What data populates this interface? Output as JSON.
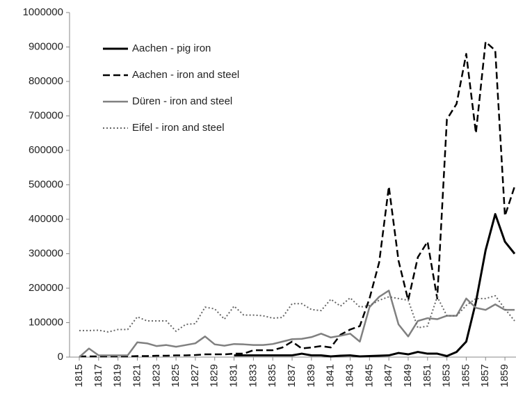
{
  "chart_data": {
    "type": "line",
    "x": [
      1815,
      1816,
      1817,
      1818,
      1819,
      1820,
      1821,
      1822,
      1823,
      1824,
      1825,
      1826,
      1827,
      1828,
      1829,
      1830,
      1831,
      1832,
      1833,
      1834,
      1835,
      1836,
      1837,
      1838,
      1839,
      1840,
      1841,
      1842,
      1843,
      1844,
      1845,
      1846,
      1847,
      1848,
      1849,
      1850,
      1851,
      1852,
      1853,
      1854,
      1855,
      1856,
      1857,
      1858,
      1859,
      1860
    ],
    "xlim": [
      1815,
      1860
    ],
    "xticks": [
      1815,
      1817,
      1819,
      1821,
      1823,
      1825,
      1827,
      1829,
      1831,
      1833,
      1835,
      1837,
      1839,
      1841,
      1843,
      1845,
      1847,
      1849,
      1851,
      1853,
      1855,
      1857,
      1859
    ],
    "ylim": [
      0,
      1000000
    ],
    "yticks": [
      0,
      100000,
      200000,
      300000,
      400000,
      500000,
      600000,
      700000,
      800000,
      900000,
      1000000
    ],
    "legend": "upper left",
    "series": [
      {
        "name": "Aachen - pig iron",
        "color": "#000000",
        "line_style": "solid",
        "width": 3,
        "values": [
          null,
          null,
          null,
          null,
          null,
          null,
          null,
          null,
          null,
          null,
          null,
          null,
          null,
          null,
          null,
          null,
          5000,
          5000,
          5000,
          5000,
          5000,
          5000,
          5000,
          10000,
          5000,
          5000,
          2000,
          4000,
          5000,
          2000,
          3000,
          4000,
          5000,
          12000,
          8000,
          15000,
          10000,
          10000,
          3000,
          15000,
          45000,
          160000,
          310000,
          415000,
          335000,
          300000
        ]
      },
      {
        "name": "Aachen - iron and steel",
        "color": "#000000",
        "line_style": "dashed",
        "width": 2.5,
        "values": [
          2000,
          2000,
          2000,
          2000,
          2000,
          2000,
          3000,
          3000,
          4000,
          4000,
          5000,
          5000,
          6000,
          8000,
          8000,
          8000,
          10000,
          10000,
          20000,
          20000,
          20000,
          28000,
          45000,
          25000,
          28000,
          32000,
          28000,
          65000,
          80000,
          90000,
          170000,
          275000,
          495000,
          280000,
          165000,
          290000,
          335000,
          170000,
          690000,
          735000,
          880000,
          650000,
          915000,
          890000,
          410000,
          495000
        ]
      },
      {
        "name": "Düren - iron and steel",
        "color": "#808080",
        "line_style": "solid",
        "width": 2.5,
        "values": [
          0,
          25000,
          5000,
          5000,
          5000,
          5000,
          43000,
          40000,
          32000,
          35000,
          30000,
          35000,
          40000,
          60000,
          37000,
          33000,
          38000,
          37000,
          35000,
          35000,
          38000,
          45000,
          52000,
          53000,
          58000,
          68000,
          57000,
          62000,
          68000,
          45000,
          145000,
          175000,
          193000,
          95000,
          60000,
          105000,
          113000,
          110000,
          120000,
          120000,
          170000,
          143000,
          137000,
          153000,
          137000,
          137000
        ]
      },
      {
        "name": "Eifel - iron and steel",
        "color": "#666666",
        "line_style": "dotted",
        "width": 2,
        "values": [
          77000,
          77000,
          78000,
          73000,
          80000,
          80000,
          117000,
          105000,
          105000,
          105000,
          75000,
          95000,
          97000,
          145000,
          140000,
          110000,
          148000,
          122000,
          122000,
          120000,
          113000,
          115000,
          155000,
          155000,
          138000,
          135000,
          168000,
          148000,
          172000,
          145000,
          150000,
          165000,
          175000,
          170000,
          165000,
          85000,
          90000,
          175000,
          120000,
          120000,
          150000,
          170000,
          170000,
          178000,
          140000,
          105000
        ]
      }
    ]
  }
}
